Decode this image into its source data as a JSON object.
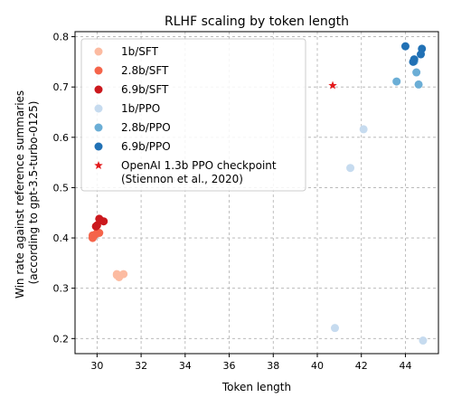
{
  "chart_data": {
    "type": "scatter",
    "title": "RLHF scaling by token length",
    "xlabel": "Token length",
    "ylabel_lines": [
      "Win rate against reference summaries",
      "(according to gpt-3.5-turbo-0125)"
    ],
    "xlim": [
      29,
      45.5
    ],
    "ylim": [
      0.17,
      0.81
    ],
    "xticks": [
      "30",
      "32",
      "34",
      "36",
      "38",
      "40",
      "42",
      "44"
    ],
    "yticks": [
      "0.2",
      "0.3",
      "0.4",
      "0.5",
      "0.6",
      "0.7",
      "0.8"
    ],
    "grid": true,
    "legend_position": "upper-left",
    "series": [
      {
        "name": "1b/SFT",
        "color": "#fcbba1",
        "marker": "circle",
        "points": [
          [
            30.9,
            0.328
          ],
          [
            31.2,
            0.328
          ],
          [
            31.0,
            0.322
          ],
          [
            30.9,
            0.326
          ]
        ]
      },
      {
        "name": "2.8b/SFT",
        "color": "#f5644a",
        "marker": "circle",
        "points": [
          [
            29.8,
            0.405
          ],
          [
            29.8,
            0.4
          ],
          [
            30.0,
            0.41
          ],
          [
            30.1,
            0.41
          ],
          [
            29.9,
            0.406
          ]
        ]
      },
      {
        "name": "6.9b/SFT",
        "color": "#cb181d",
        "marker": "circle",
        "points": [
          [
            30.1,
            0.438
          ],
          [
            30.3,
            0.433
          ],
          [
            30.0,
            0.425
          ],
          [
            29.95,
            0.423
          ],
          [
            30.15,
            0.435
          ]
        ]
      },
      {
        "name": "1b/PPO",
        "color": "#c6dbef",
        "marker": "circle",
        "points": [
          [
            42.1,
            0.616
          ],
          [
            41.5,
            0.539
          ],
          [
            40.8,
            0.221
          ],
          [
            44.8,
            0.196
          ]
        ]
      },
      {
        "name": "2.8b/PPO",
        "color": "#6baed6",
        "marker": "circle",
        "points": [
          [
            43.6,
            0.711
          ],
          [
            44.5,
            0.729
          ],
          [
            44.6,
            0.705
          ],
          [
            44.4,
            0.751
          ]
        ]
      },
      {
        "name": "6.9b/PPO",
        "color": "#2171b5",
        "marker": "circle",
        "points": [
          [
            44.0,
            0.781
          ],
          [
            44.75,
            0.776
          ],
          [
            44.7,
            0.765
          ],
          [
            44.4,
            0.755
          ],
          [
            44.35,
            0.75
          ]
        ]
      },
      {
        "name_lines": [
          "OpenAI 1.3b PPO checkpoint",
          "(Stiennon et al., 2020)"
        ],
        "color": "#e31a1c",
        "marker": "star",
        "points": [
          [
            40.7,
            0.703
          ]
        ]
      }
    ]
  }
}
